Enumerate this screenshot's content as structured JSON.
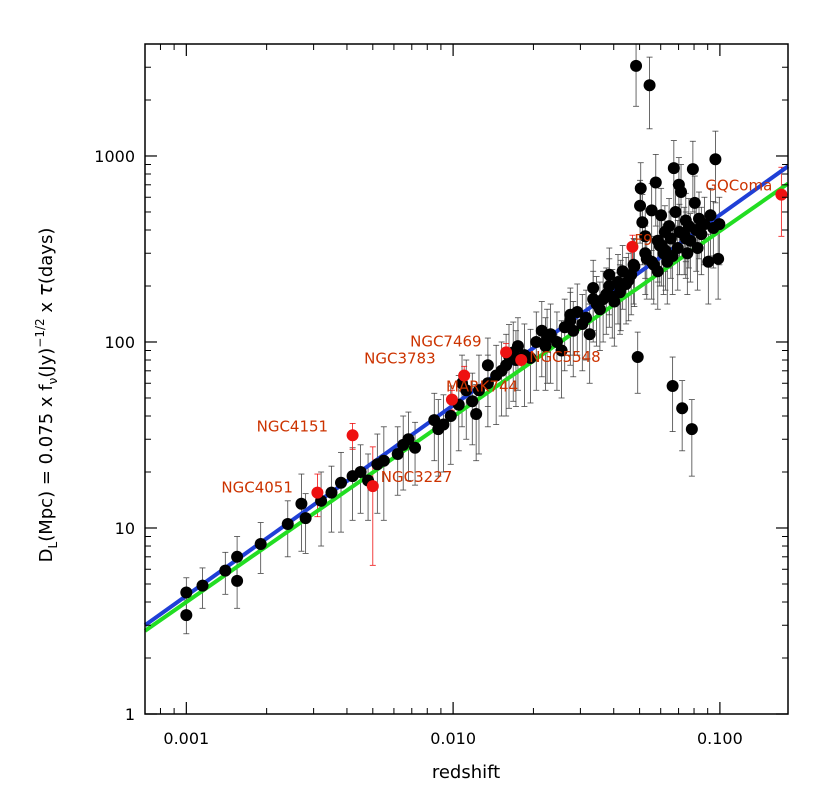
{
  "chart_data": {
    "type": "scatter",
    "title": "",
    "xlabel": "redshift",
    "ylabel": {
      "base": "D",
      "sub1": "L",
      "part1": "(Mpc)  =  0.075 x f",
      "sub2": "ν",
      "part2": "(Jy)",
      "sup": "−1/2",
      "part3": " x ",
      "tau": "τ",
      "part4": "(days)"
    },
    "xscale": "log",
    "yscale": "log",
    "xlim": [
      0.0007,
      0.18
    ],
    "ylim": [
      1,
      4000
    ],
    "x_ticks": [
      {
        "value": 0.001,
        "label": "0.001"
      },
      {
        "value": 0.01,
        "label": "0.010"
      },
      {
        "value": 0.1,
        "label": "0.100"
      }
    ],
    "y_ticks": [
      {
        "value": 1,
        "label": "1"
      },
      {
        "value": 10,
        "label": "10"
      },
      {
        "value": 100,
        "label": "100"
      },
      {
        "value": 1000,
        "label": "1000"
      }
    ],
    "colors": {
      "black_points": "#000000",
      "red_points": "#ee1111",
      "labels": "#cc3300",
      "blue_line": "#1f3fd6",
      "green_line": "#22dd22"
    },
    "lines": [
      {
        "color": "blue",
        "points": [
          [
            0.0007,
            3.0
          ],
          [
            0.18,
            880
          ]
        ]
      },
      {
        "color": "green",
        "points": [
          [
            0.0007,
            2.8
          ],
          [
            0.18,
            710
          ]
        ]
      }
    ],
    "black_points": [
      [
        0.001,
        4.5,
        0.9
      ],
      [
        0.001,
        3.4,
        0.7
      ],
      [
        0.00115,
        4.9,
        1.2
      ],
      [
        0.0014,
        5.9,
        1.5
      ],
      [
        0.00155,
        7.0,
        2.0
      ],
      [
        0.00155,
        5.2,
        1.5
      ],
      [
        0.0019,
        8.2,
        2.5
      ],
      [
        0.0024,
        10.5,
        3.5
      ],
      [
        0.0027,
        13.5,
        6.0
      ],
      [
        0.0028,
        11.3,
        4.0
      ],
      [
        0.0032,
        14.0,
        6.0
      ],
      [
        0.0038,
        17.5,
        8.0
      ],
      [
        0.0042,
        19.0,
        8.0
      ],
      [
        0.0048,
        18.0,
        7.0
      ],
      [
        0.0052,
        22.0,
        10.0
      ],
      [
        0.0055,
        23.0,
        12.0
      ],
      [
        0.0062,
        25.0,
        10.0
      ],
      [
        0.0065,
        28.0,
        12.0
      ],
      [
        0.0072,
        27.0,
        10.0
      ],
      [
        0.0088,
        34.0,
        15.0
      ],
      [
        0.0092,
        36.0,
        16.0
      ],
      [
        0.0098,
        40.0,
        18.0
      ],
      [
        0.0105,
        46.0,
        20.0
      ],
      [
        0.0112,
        55.0,
        25.0
      ],
      [
        0.0118,
        48.0,
        20.0
      ],
      [
        0.0122,
        41.0,
        18.0
      ],
      [
        0.0125,
        55.0,
        30.0
      ],
      [
        0.0135,
        60.0,
        25.0
      ],
      [
        0.0145,
        66.0,
        30.0
      ],
      [
        0.0152,
        70.0,
        30.0
      ],
      [
        0.0158,
        75.0,
        35.0
      ],
      [
        0.0162,
        84.0,
        40.0
      ],
      [
        0.0168,
        88.0,
        40.0
      ],
      [
        0.0172,
        80.0,
        35.0
      ],
      [
        0.0185,
        85.0,
        40.0
      ],
      [
        0.0195,
        82.0,
        35.0
      ],
      [
        0.0205,
        100.0,
        45.0
      ],
      [
        0.0215,
        115.0,
        50.0
      ],
      [
        0.0222,
        95.0,
        40.0
      ],
      [
        0.0232,
        110.0,
        50.0
      ],
      [
        0.0245,
        100.0,
        45.0
      ],
      [
        0.0255,
        90.0,
        40.0
      ],
      [
        0.0262,
        120.0,
        50.0
      ],
      [
        0.0275,
        130.0,
        55.0
      ],
      [
        0.0282,
        115.0,
        50.0
      ],
      [
        0.0292,
        145.0,
        60.0
      ],
      [
        0.0305,
        125.0,
        55.0
      ],
      [
        0.0315,
        135.0,
        55.0
      ],
      [
        0.0325,
        110.0,
        50.0
      ],
      [
        0.0335,
        195.0,
        80.0
      ],
      [
        0.0345,
        160.0,
        65.0
      ],
      [
        0.0355,
        150.0,
        60.0
      ],
      [
        0.0365,
        170.0,
        70.0
      ],
      [
        0.0375,
        180.0,
        70.0
      ],
      [
        0.0385,
        200.0,
        80.0
      ],
      [
        0.0395,
        175.0,
        70.0
      ],
      [
        0.0402,
        165.0,
        70.0
      ],
      [
        0.0415,
        210.0,
        85.0
      ],
      [
        0.0422,
        185.0,
        75.0
      ],
      [
        0.0432,
        240.0,
        90.0
      ],
      [
        0.0445,
        205.0,
        80.0
      ],
      [
        0.0455,
        215.0,
        85.0
      ],
      [
        0.0465,
        230.0,
        90.0
      ],
      [
        0.0478,
        255.0,
        100.0
      ],
      [
        0.0485,
        3050.0,
        1200.0
      ],
      [
        0.0492,
        83.0,
        30.0
      ],
      [
        0.0502,
        540.0,
        200.0
      ],
      [
        0.0505,
        670.0,
        250.0
      ],
      [
        0.0512,
        440.0,
        180.0
      ],
      [
        0.0525,
        300.0,
        120.0
      ],
      [
        0.0532,
        280.0,
        110.0
      ],
      [
        0.0545,
        2400.0,
        1000.0
      ],
      [
        0.0555,
        510.0,
        200.0
      ],
      [
        0.0565,
        260.0,
        100.0
      ],
      [
        0.0575,
        720.0,
        300.0
      ],
      [
        0.0585,
        350.0,
        140.0
      ],
      [
        0.0595,
        330.0,
        130.0
      ],
      [
        0.0602,
        480.0,
        190.0
      ],
      [
        0.0615,
        300.0,
        120.0
      ],
      [
        0.0622,
        390.0,
        150.0
      ],
      [
        0.0635,
        270.0,
        110.0
      ],
      [
        0.0645,
        420.0,
        170.0
      ],
      [
        0.0655,
        360.0,
        140.0
      ],
      [
        0.0665,
        58.0,
        25.0
      ],
      [
        0.0672,
        860.0,
        350.0
      ],
      [
        0.0682,
        500.0,
        200.0
      ],
      [
        0.0695,
        320.0,
        130.0
      ],
      [
        0.0702,
        700.0,
        280.0
      ],
      [
        0.0715,
        640.0,
        260.0
      ],
      [
        0.0722,
        44.0,
        18.0
      ],
      [
        0.0735,
        380.0,
        150.0
      ],
      [
        0.0745,
        450.0,
        180.0
      ],
      [
        0.0755,
        300.0,
        120.0
      ],
      [
        0.0765,
        420.0,
        170.0
      ],
      [
        0.0775,
        350.0,
        140.0
      ],
      [
        0.0785,
        34.0,
        15.0
      ],
      [
        0.0792,
        850.0,
        350.0
      ],
      [
        0.0805,
        560.0,
        220.0
      ],
      [
        0.0815,
        400.0,
        160.0
      ],
      [
        0.0825,
        320.0,
        130.0
      ],
      [
        0.0835,
        460.0,
        180.0
      ],
      [
        0.0852,
        380.0,
        150.0
      ],
      [
        0.0875,
        430.0,
        170.0
      ],
      [
        0.0905,
        270.0,
        110.0
      ],
      [
        0.0922,
        480.0,
        190.0
      ],
      [
        0.0945,
        410.0,
        160.0
      ],
      [
        0.0962,
        960.0,
        400.0
      ],
      [
        0.0985,
        280.0,
        110.0
      ],
      [
        0.0995,
        430.0,
        170.0
      ],
      [
        0.0555,
        270.0,
        100.0
      ],
      [
        0.0585,
        240.0,
        90.0
      ],
      [
        0.0625,
        310.0,
        120.0
      ],
      [
        0.0665,
        290.0,
        110.0
      ],
      [
        0.0745,
        360.0,
        140.0
      ],
      [
        0.0425,
        195.0,
        80.0
      ],
      [
        0.0475,
        260.0,
        100.0
      ],
      [
        0.0525,
        370.0,
        150.0
      ],
      [
        0.0605,
        330.0,
        130.0
      ],
      [
        0.0705,
        390.0,
        160.0
      ],
      [
        0.0385,
        230.0,
        90.0
      ],
      [
        0.0335,
        170.0,
        70.0
      ],
      [
        0.0275,
        140.0,
        55.0
      ],
      [
        0.0225,
        105.0,
        45.0
      ],
      [
        0.0175,
        95.0,
        40.0
      ],
      [
        0.0135,
        75.0,
        30.0
      ],
      [
        0.0108,
        60.0,
        25.0
      ],
      [
        0.0085,
        38.0,
        15.0
      ],
      [
        0.0068,
        30.0,
        12.0
      ],
      [
        0.0045,
        20.0,
        8.0
      ],
      [
        0.0035,
        15.5,
        6.0
      ]
    ],
    "red_points": [
      {
        "x": 0.0031,
        "y": 15.5,
        "err": 4.0,
        "label": "NGC4051"
      },
      {
        "x": 0.0042,
        "y": 31.5,
        "err": 5.0,
        "label": "NGC4151"
      },
      {
        "x": 0.005,
        "y": 16.8,
        "err": 10.5,
        "label": "NGC3227"
      },
      {
        "x": 0.0099,
        "y": 49.0,
        "err": 6.0,
        "label": "MARK744"
      },
      {
        "x": 0.011,
        "y": 66.0,
        "err": 8.0,
        "label": "NGC3783"
      },
      {
        "x": 0.0158,
        "y": 88.0,
        "err": 10.0,
        "label": "NGC7469"
      },
      {
        "x": 0.018,
        "y": 80.0,
        "err": 9.0,
        "label": "NGC5548"
      },
      {
        "x": 0.047,
        "y": 325.0,
        "err": 50.0,
        "label": "F9"
      },
      {
        "x": 0.17,
        "y": 620.0,
        "err": 250.0,
        "label": "GQComa"
      }
    ]
  }
}
